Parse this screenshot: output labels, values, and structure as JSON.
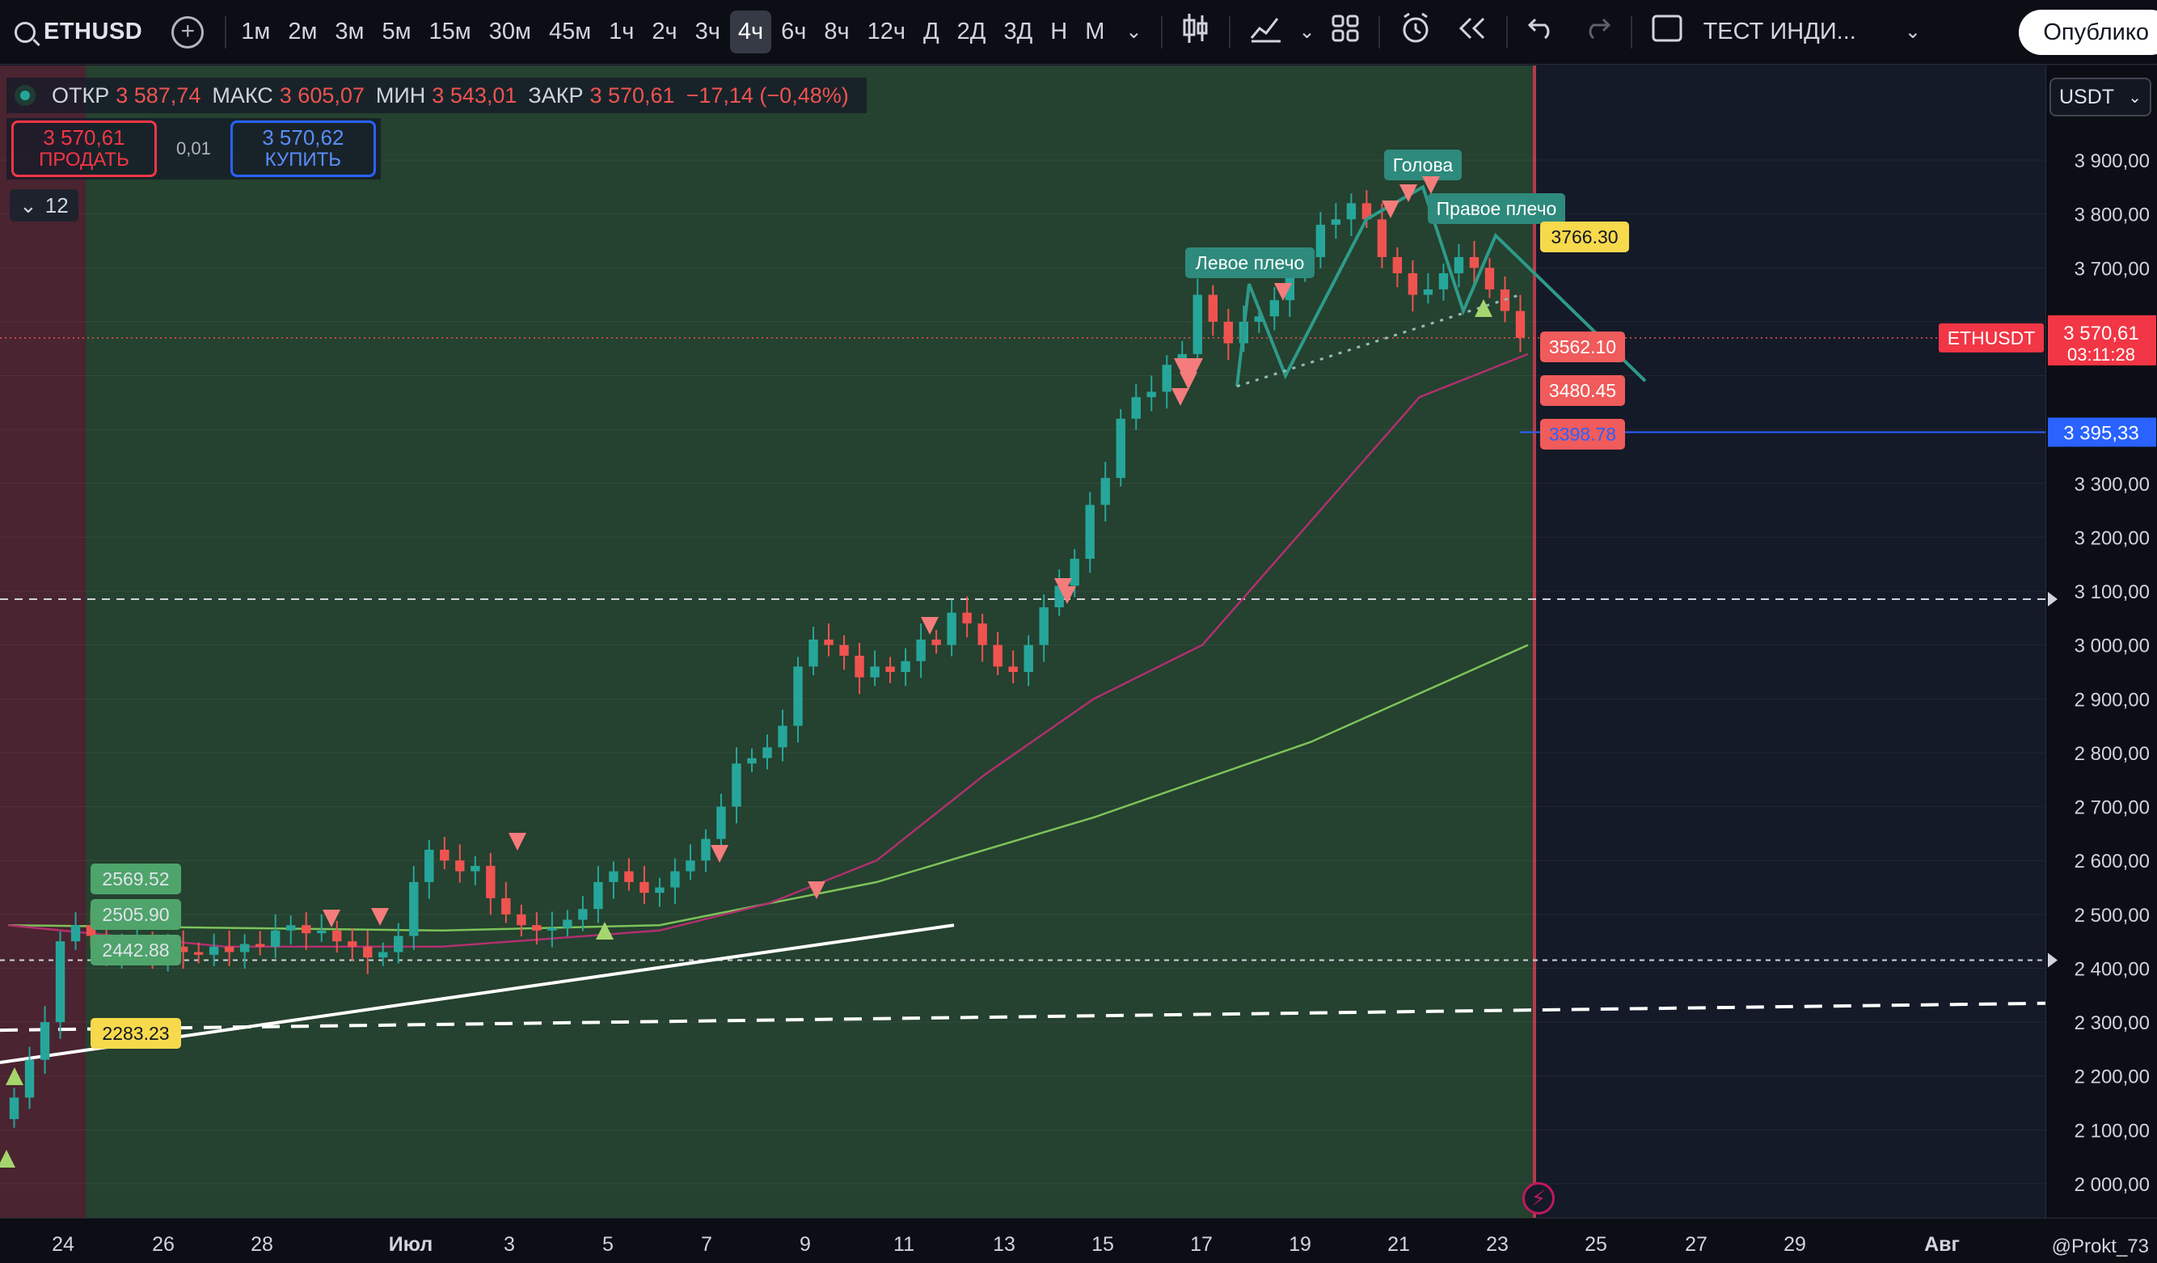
{
  "toolbar": {
    "symbol": "ETHUSD",
    "add_icon": "plus-circle-icon",
    "timeframes": [
      "1м",
      "2м",
      "3м",
      "5м",
      "15м",
      "30м",
      "45м",
      "1ч",
      "2ч",
      "3ч",
      "4ч",
      "6ч",
      "8ч",
      "12ч",
      "Д",
      "2Д",
      "3Д",
      "Н",
      "М"
    ],
    "active_timeframe": "4ч",
    "icons": [
      "chevron-down-icon",
      "candles-icon",
      "indicators-icon",
      "templates-icon",
      "alert-icon",
      "replay-icon",
      "undo-icon",
      "redo-icon",
      "layout-icon"
    ],
    "indicator_name": "ТЕСТ ИНДИ...",
    "publish_label": "Опублико"
  },
  "legend": {
    "open_label": "ОТКР",
    "open": "3 587,74",
    "high_label": "МАКС",
    "high": "3 605,07",
    "low_label": "МИН",
    "low": "3 543,01",
    "close_label": "ЗАКР",
    "close": "3 570,61",
    "change": "−17,14 (−0,48%)"
  },
  "trade": {
    "sell_price": "3 570,61",
    "sell_label": "ПРОДАТЬ",
    "spread": "0,01",
    "buy_price": "3 570,62",
    "buy_label": "КУПИТЬ"
  },
  "indicators_count": "12",
  "currency": "USDT",
  "price_axis": {
    "ticks": [
      "3 900,00",
      "3 800,00",
      "3 700,00",
      "3 600,00",
      "3 500,00",
      "3 400,00",
      "3 300,00",
      "3 200,00",
      "3 100,00",
      "3 000,00",
      "2 900,00",
      "2 800,00",
      "2 700,00",
      "2 600,00",
      "2 500,00",
      "2 400,00",
      "2 300,00",
      "2 200,00",
      "2 100,00",
      "2 000,00"
    ],
    "tick_values": [
      3900,
      3800,
      3700,
      3600,
      3500,
      3400,
      3300,
      3200,
      3100,
      3000,
      2900,
      2800,
      2700,
      2600,
      2500,
      2400,
      2300,
      2200,
      2100,
      2000
    ],
    "symbol_tag": "ETHUSDT",
    "last_price": "3 570,61",
    "countdown": "03:11:28",
    "blue_line_price": "3 395,33"
  },
  "time_axis": {
    "labels": [
      "24",
      "26",
      "28",
      "Июл",
      "3",
      "5",
      "7",
      "9",
      "11",
      "13",
      "15",
      "17",
      "19",
      "21",
      "23",
      "25",
      "27",
      "29",
      "Авг"
    ]
  },
  "annotations": {
    "left_shoulder": "Левое плечо",
    "head": "Голова",
    "right_shoulder": "Правое плечо",
    "level_3766": "3766.30",
    "level_3562": "3562.10",
    "level_3480": "3480.45",
    "level_3398": "3398.78",
    "level_2569": "2569.52",
    "level_2505": "2505.90",
    "level_2442": "2442.88",
    "level_2283": "2283.23"
  },
  "attribution": "@Prokt_73",
  "colors": {
    "up": "#26a69a",
    "down": "#ef5350",
    "bg_green": "#25412f",
    "bg_red": "#4a2430",
    "ma_slow": "#7cc35a",
    "ma_fast": "#b0306f"
  },
  "chart_data": {
    "type": "candlestick",
    "y_range": [
      1950,
      3980
    ],
    "closes": [
      2160,
      2230,
      2300,
      2450,
      2480,
      2460,
      2430,
      2440,
      2450,
      2420,
      2440,
      2430,
      2425,
      2440,
      2430,
      2445,
      2440,
      2470,
      2480,
      2465,
      2470,
      2450,
      2440,
      2420,
      2430,
      2460,
      2560,
      2620,
      2600,
      2580,
      2590,
      2530,
      2500,
      2480,
      2470,
      2475,
      2490,
      2510,
      2560,
      2580,
      2560,
      2540,
      2550,
      2580,
      2600,
      2640,
      2700,
      2780,
      2790,
      2810,
      2850,
      2960,
      3010,
      3000,
      2980,
      2940,
      2960,
      2950,
      2970,
      3010,
      3000,
      3060,
      3040,
      3000,
      2960,
      2950,
      3000,
      3070,
      3110,
      3160,
      3260,
      3310,
      3420,
      3460,
      3470,
      3520,
      3540,
      3650,
      3600,
      3560,
      3600,
      3610,
      3640,
      3690,
      3720,
      3780,
      3790,
      3820,
      3790,
      3720,
      3690,
      3650,
      3660,
      3690,
      3720,
      3700,
      3660,
      3620,
      3570
    ],
    "ma_fast_points": [
      [
        0,
        2480
      ],
      [
        20,
        2440
      ],
      [
        40,
        2440
      ],
      [
        60,
        2470
      ],
      [
        70,
        2520
      ],
      [
        80,
        2600
      ],
      [
        90,
        2760
      ],
      [
        100,
        2900
      ],
      [
        110,
        3000
      ],
      [
        120,
        3230
      ],
      [
        130,
        3460
      ],
      [
        140,
        3540
      ]
    ],
    "ma_slow_points": [
      [
        0,
        2480
      ],
      [
        40,
        2470
      ],
      [
        60,
        2480
      ],
      [
        80,
        2560
      ],
      [
        100,
        2680
      ],
      [
        120,
        2820
      ],
      [
        140,
        3000
      ]
    ]
  }
}
